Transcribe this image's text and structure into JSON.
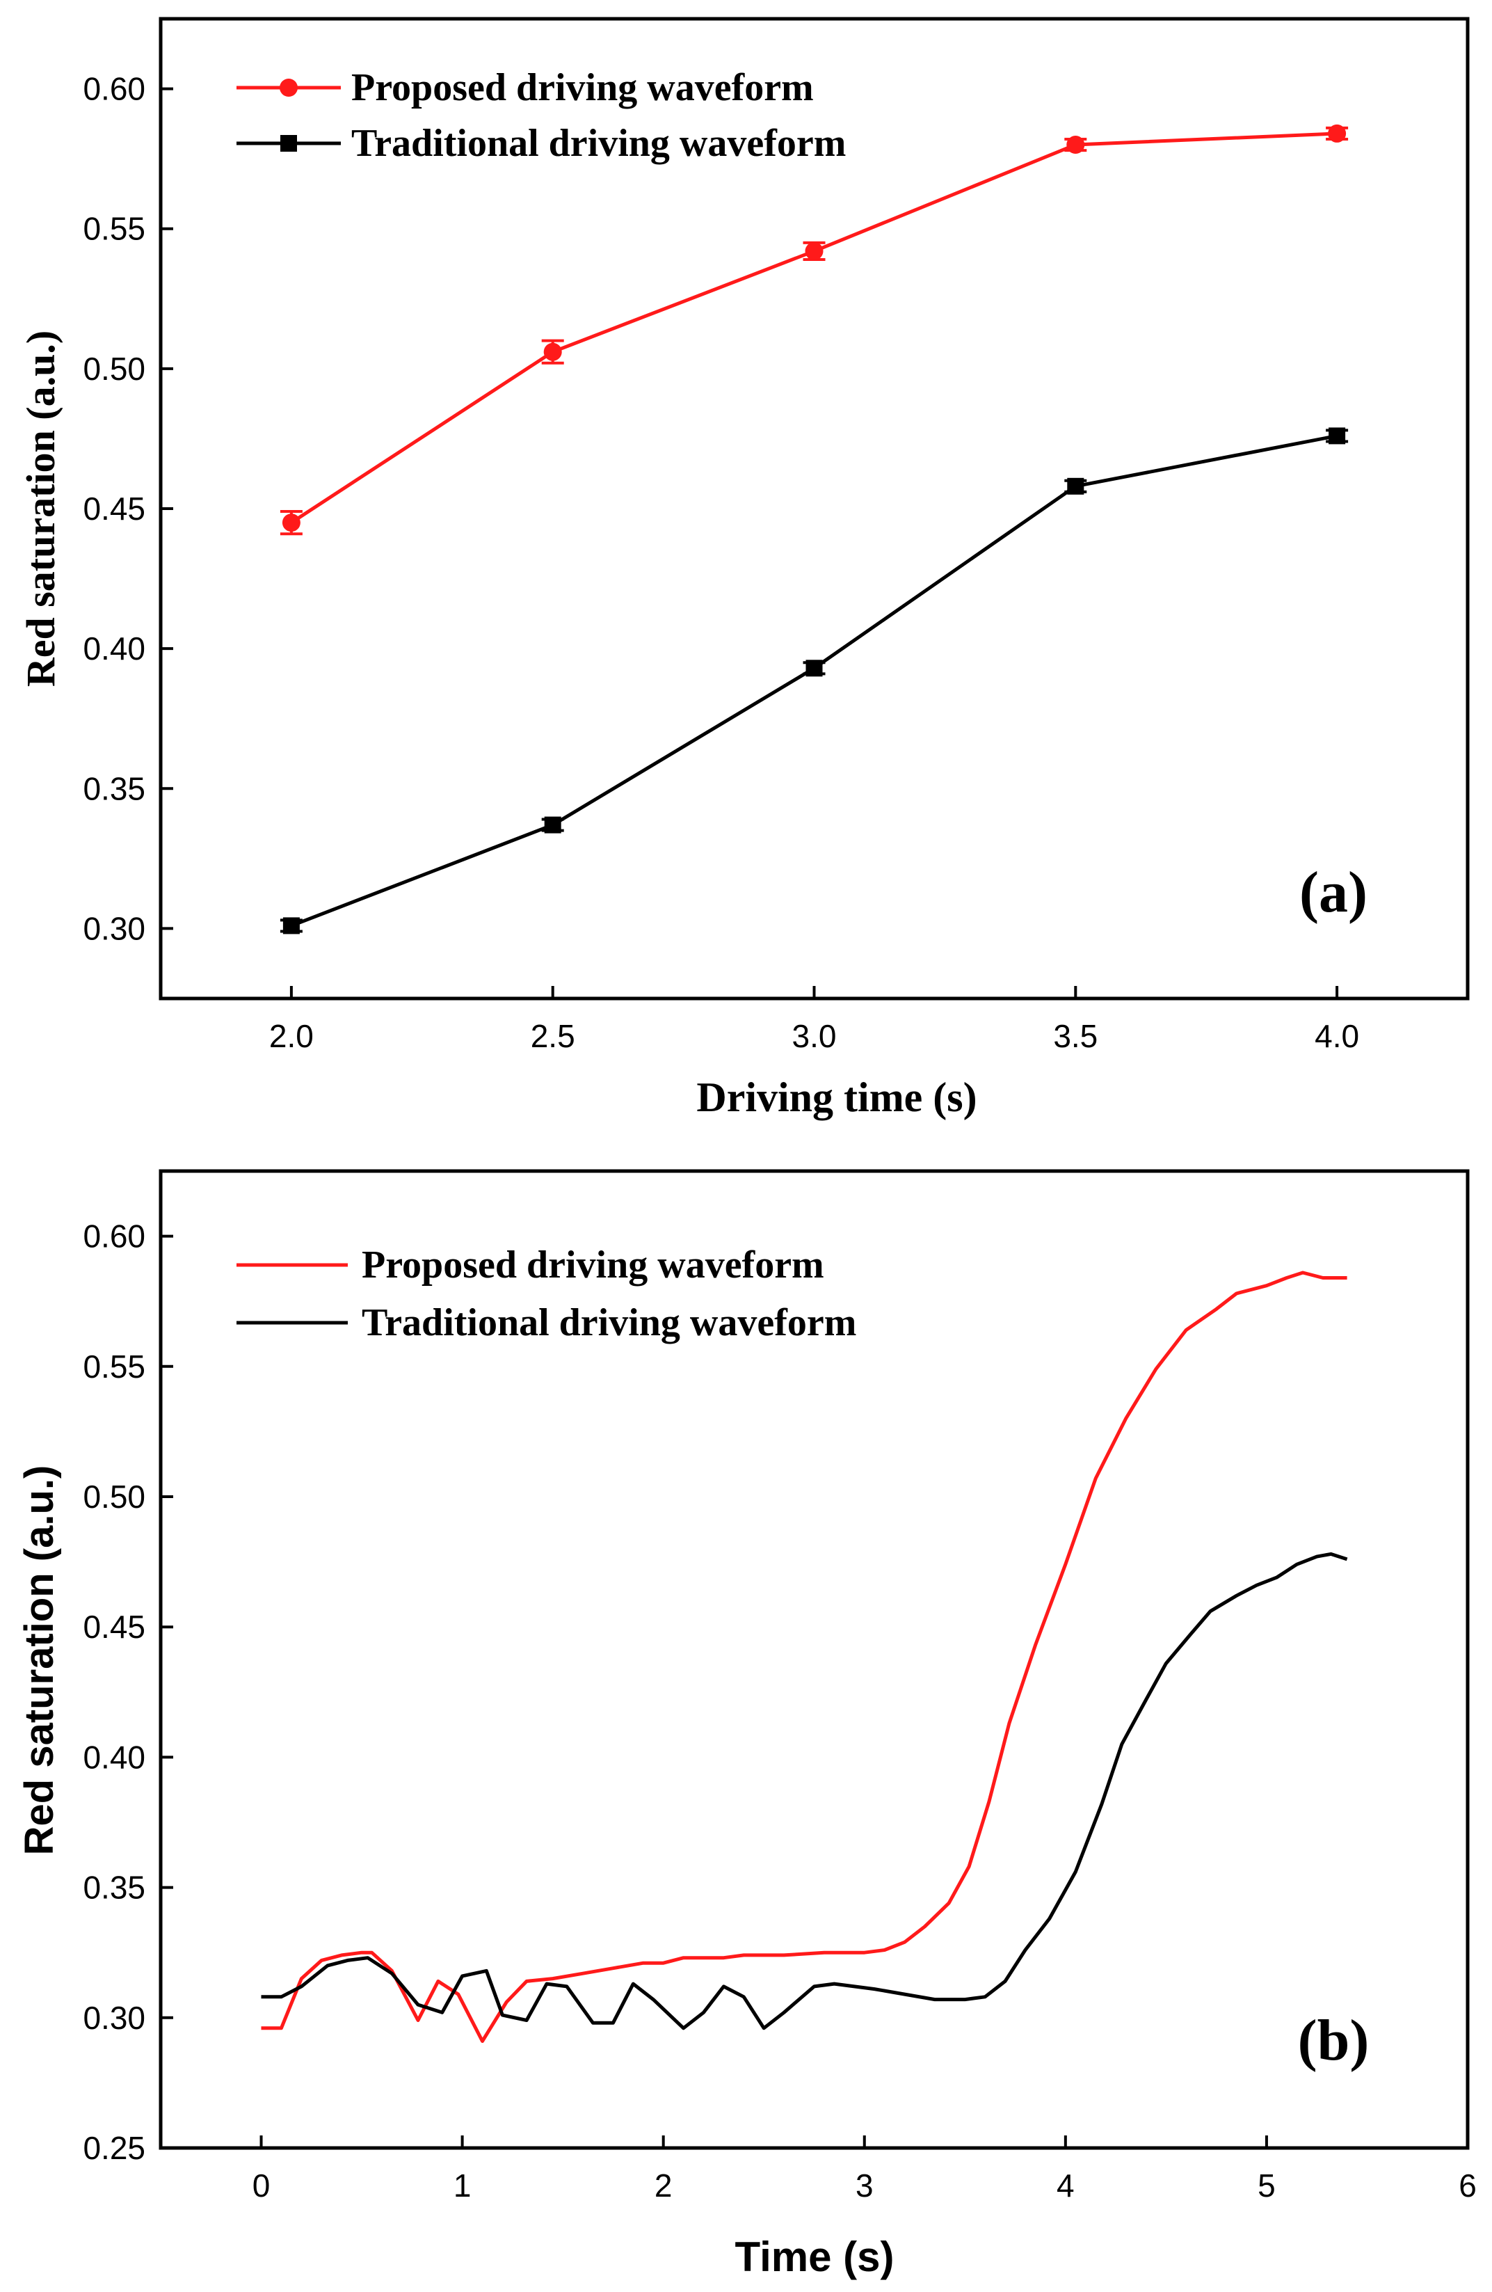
{
  "chart_data": [
    {
      "type": "line",
      "panel_label": "(a)",
      "xlabel": "Driving time (s)",
      "ylabel": "Red saturation (a.u.)",
      "xlim": [
        1.75,
        4.25
      ],
      "ylim": [
        0.275,
        0.625
      ],
      "xticks": [
        2.0,
        2.5,
        3.0,
        3.5,
        4.0
      ],
      "xtick_labels": [
        "2.0",
        "2.5",
        "3.0",
        "3.5",
        "4.0"
      ],
      "yticks": [
        0.3,
        0.35,
        0.4,
        0.45,
        0.5,
        0.55,
        0.6
      ],
      "ytick_labels": [
        "0.30",
        "0.35",
        "0.40",
        "0.45",
        "0.50",
        "0.55",
        "0.60"
      ],
      "legend_position": "top-left",
      "x": [
        2.0,
        2.5,
        3.0,
        3.5,
        4.0
      ],
      "series": [
        {
          "name": "Proposed driving waveform",
          "color": "#ff1a1a",
          "marker": "circle",
          "values": [
            0.445,
            0.506,
            0.542,
            0.58,
            0.584
          ],
          "errors": [
            0.004,
            0.004,
            0.003,
            0.002,
            0.002
          ]
        },
        {
          "name": "Traditional driving waveform",
          "color": "#000000",
          "marker": "square",
          "values": [
            0.301,
            0.337,
            0.393,
            0.458,
            0.476
          ],
          "errors": [
            0.002,
            0.002,
            0.002,
            0.002,
            0.002
          ]
        }
      ]
    },
    {
      "type": "line",
      "panel_label": "(b)",
      "xlabel": "Time (s)",
      "ylabel": "Red saturation (a.u.)",
      "xlim": [
        -0.5,
        6
      ],
      "ylim": [
        0.25,
        0.625
      ],
      "xticks": [
        0,
        1,
        2,
        3,
        4,
        5,
        6
      ],
      "xtick_labels": [
        "0",
        "1",
        "2",
        "3",
        "4",
        "5",
        "6"
      ],
      "yticks": [
        0.25,
        0.3,
        0.35,
        0.4,
        0.45,
        0.5,
        0.55,
        0.6
      ],
      "ytick_labels": [
        "0.25",
        "0.30",
        "0.35",
        "0.40",
        "0.45",
        "0.50",
        "0.55",
        "0.60"
      ],
      "legend_position": "top-left",
      "series": [
        {
          "name": "Proposed driving waveform",
          "color": "#ff1a1a",
          "x": [
            0.0,
            0.1,
            0.2,
            0.3,
            0.4,
            0.5,
            0.55,
            0.65,
            0.78,
            0.88,
            0.98,
            1.1,
            1.22,
            1.32,
            1.45,
            1.6,
            1.75,
            1.9,
            2.0,
            2.1,
            2.3,
            2.4,
            2.6,
            2.8,
            3.0,
            3.1,
            3.2,
            3.3,
            3.42,
            3.52,
            3.62,
            3.72,
            3.85,
            4.0,
            4.15,
            4.3,
            4.45,
            4.6,
            4.75,
            4.85,
            5.0,
            5.1,
            5.18,
            5.28,
            5.4
          ],
          "y": [
            0.296,
            0.296,
            0.315,
            0.322,
            0.324,
            0.325,
            0.325,
            0.318,
            0.299,
            0.314,
            0.309,
            0.291,
            0.306,
            0.314,
            0.315,
            0.317,
            0.319,
            0.321,
            0.321,
            0.323,
            0.323,
            0.324,
            0.324,
            0.325,
            0.325,
            0.326,
            0.329,
            0.335,
            0.344,
            0.358,
            0.383,
            0.413,
            0.443,
            0.474,
            0.507,
            0.53,
            0.549,
            0.564,
            0.572,
            0.578,
            0.581,
            0.584,
            0.586,
            0.584,
            0.584
          ]
        },
        {
          "name": "Traditional driving waveform",
          "color": "#000000",
          "x": [
            0.0,
            0.1,
            0.2,
            0.33,
            0.43,
            0.53,
            0.65,
            0.78,
            0.9,
            1.0,
            1.12,
            1.2,
            1.32,
            1.42,
            1.52,
            1.65,
            1.75,
            1.85,
            1.95,
            2.1,
            2.2,
            2.3,
            2.4,
            2.5,
            2.6,
            2.75,
            2.85,
            2.95,
            3.05,
            3.2,
            3.35,
            3.5,
            3.6,
            3.7,
            3.8,
            3.92,
            4.05,
            4.18,
            4.28,
            4.4,
            4.5,
            4.62,
            4.72,
            4.85,
            4.95,
            5.05,
            5.15,
            5.25,
            5.32,
            5.4
          ],
          "y": [
            0.308,
            0.308,
            0.312,
            0.32,
            0.322,
            0.323,
            0.317,
            0.305,
            0.302,
            0.316,
            0.318,
            0.301,
            0.299,
            0.313,
            0.312,
            0.298,
            0.298,
            0.313,
            0.307,
            0.296,
            0.302,
            0.312,
            0.308,
            0.296,
            0.302,
            0.312,
            0.313,
            0.312,
            0.311,
            0.309,
            0.307,
            0.307,
            0.308,
            0.314,
            0.326,
            0.338,
            0.356,
            0.382,
            0.405,
            0.422,
            0.436,
            0.447,
            0.456,
            0.462,
            0.466,
            0.469,
            0.474,
            0.477,
            0.478,
            0.476
          ]
        }
      ]
    }
  ]
}
